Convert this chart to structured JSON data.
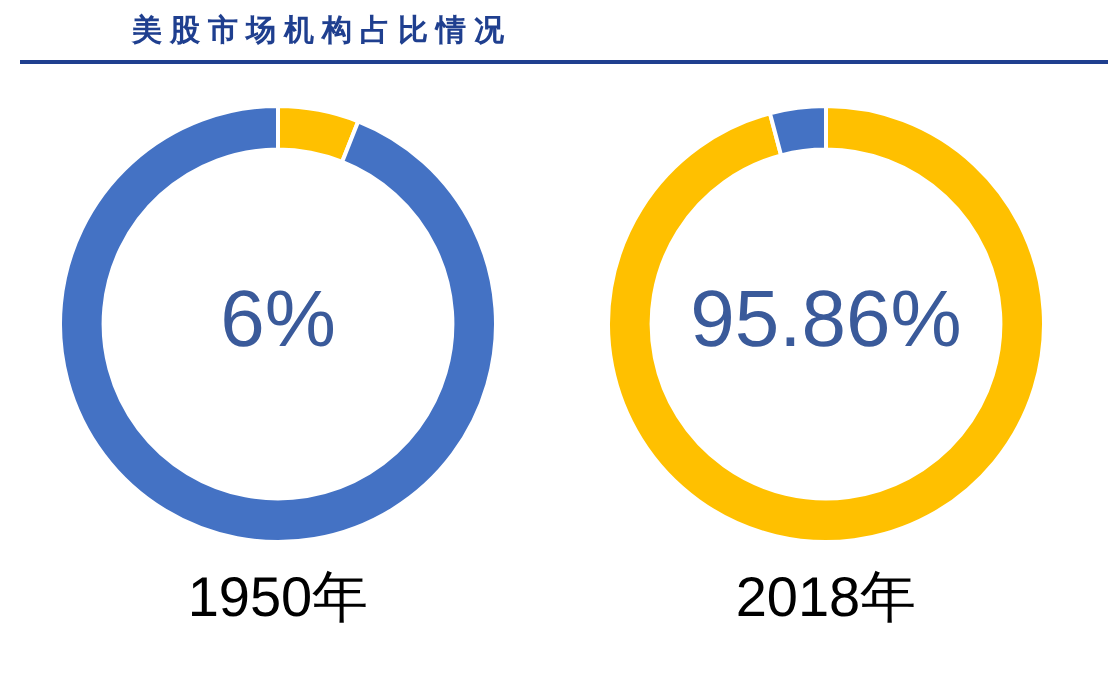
{
  "chart_data": [
    {
      "type": "donut",
      "title": "美股市场机构占比情况",
      "categories": [
        null,
        null
      ],
      "values": [
        6,
        94
      ],
      "colors": [
        "#ffc000",
        "#4472c4"
      ],
      "annotations": [
        "6%"
      ],
      "xlabel": "1950年"
    },
    {
      "type": "donut",
      "categories": [
        null,
        null
      ],
      "values": [
        95.86,
        4.14
      ],
      "colors": [
        "#ffc000",
        "#4472c4"
      ],
      "annotations": [
        "95.86%"
      ],
      "xlabel": "2018年"
    }
  ]
}
